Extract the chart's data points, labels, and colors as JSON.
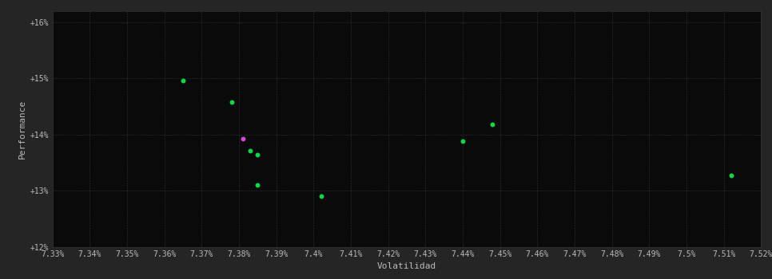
{
  "background_color": "#252525",
  "plot_bg_color": "#0a0a0a",
  "grid_color": "#333333",
  "text_color": "#bbbbbb",
  "xlabel": "Volatilidad",
  "ylabel": "Performance",
  "xlim": [
    7.33,
    7.52
  ],
  "ylim": [
    12.0,
    16.2
  ],
  "yticks": [
    12,
    13,
    14,
    15,
    16
  ],
  "ytick_labels": [
    "+12%",
    "+13%",
    "+14%",
    "+15%",
    "+16%"
  ],
  "xtick_labels": [
    "7.33%",
    "7.34%",
    "7.35%",
    "7.36%",
    "7.37%",
    "7.38%",
    "7.39%",
    "7.4%",
    "7.41%",
    "7.42%",
    "7.43%",
    "7.44%",
    "7.45%",
    "7.46%",
    "7.47%",
    "7.48%",
    "7.49%",
    "7.5%",
    "7.51%",
    "7.52%"
  ],
  "xtick_values": [
    7.33,
    7.34,
    7.35,
    7.36,
    7.37,
    7.38,
    7.39,
    7.4,
    7.41,
    7.42,
    7.43,
    7.44,
    7.45,
    7.46,
    7.47,
    7.48,
    7.49,
    7.5,
    7.51,
    7.52
  ],
  "green_points": [
    [
      7.365,
      14.96
    ],
    [
      7.378,
      14.58
    ],
    [
      7.383,
      13.72
    ],
    [
      7.385,
      13.1
    ],
    [
      7.385,
      13.65
    ],
    [
      7.402,
      12.9
    ],
    [
      7.44,
      13.88
    ],
    [
      7.448,
      14.18
    ],
    [
      7.512,
      13.28
    ]
  ],
  "magenta_point": [
    7.381,
    13.93
  ],
  "green_color": "#00dd44",
  "magenta_color": "#dd44dd",
  "dot_size": 18
}
